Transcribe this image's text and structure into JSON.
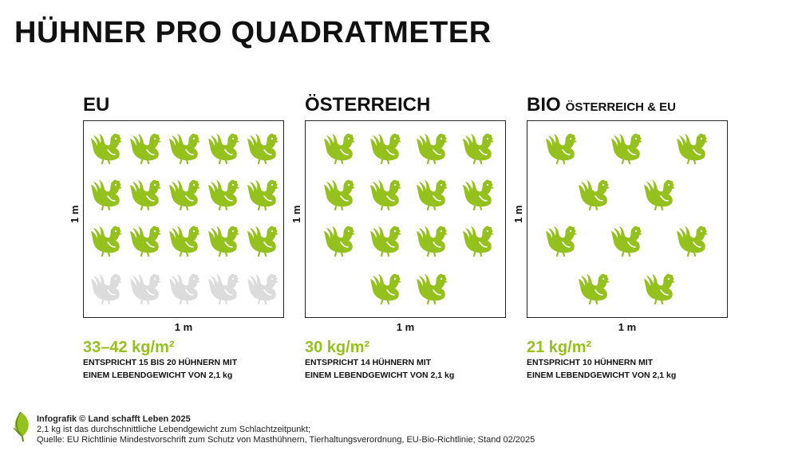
{
  "title": "HÜHNER PRO QUADRATMETER",
  "colors": {
    "hen_active": "#95c11f",
    "hen_inactive": "#dcdcdc",
    "hen_line": "#ffffff",
    "accent": "#95c11f"
  },
  "panels": [
    {
      "heading": "EU",
      "subheading": "",
      "side_label": "1 m",
      "bottom_label": "1 m",
      "value": "33–42 kg/m²",
      "desc_line1": "ENTSPRICHT 15 BIS 20 HÜHNERN MIT",
      "desc_line2": "EINEM LEBENDGEWICHT VON 2,1 kg",
      "hens_active": 15,
      "hens_inactive": 5
    },
    {
      "heading": "ÖSTERREICH",
      "subheading": "",
      "side_label": "1 m",
      "bottom_label": "1 m",
      "value": "30 kg/m²",
      "desc_line1": "ENTSPRICHT 14 HÜHNERN MIT",
      "desc_line2": "EINEM LEBENDGEWICHT VON 2,1 kg",
      "hens_active": 14,
      "hens_inactive": 0
    },
    {
      "heading": "BIO",
      "subheading": "ÖSTERREICH & EU",
      "side_label": "1 m",
      "bottom_label": "1 m",
      "value": "21 kg/m²",
      "desc_line1": "ENTSPRICHT 10 HÜHNERN MIT",
      "desc_line2": "EINEM LEBENDGEWICHT VON 2,1 kg",
      "hens_active": 10,
      "hens_inactive": 0
    }
  ],
  "footer": {
    "logo_icon": "leaf-logo-icon",
    "credit": "Infografik © Land schafft Leben 2025",
    "note": "2,1 kg ist das durchschnittliche Lebendgewicht zum Schlachtzeitpunkt;",
    "source": "Quelle: EU Richtlinie Mindestvorschrift zum Schutz von Masthühnern, Tierhaltungsverordnung, EU-Bio-Richtlinie; Stand 02/2025"
  }
}
